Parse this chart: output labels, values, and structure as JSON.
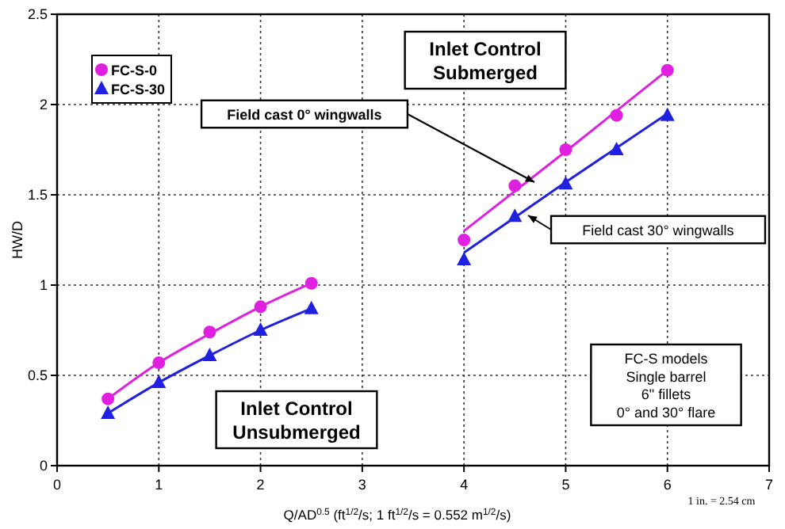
{
  "chart_data": {
    "type": "scatter",
    "xlabel": "Q/AD$^{0.5}$ (ft$^{1/2}$/s; 1 ft$^{1/2}$/s = 0.552 m$^{1/2}$/s)",
    "ylabel": "HW/D",
    "xlim": [
      0,
      7
    ],
    "xticks": [
      0,
      1,
      2,
      3,
      4,
      5,
      6,
      7
    ],
    "ylim": [
      0,
      2.5
    ],
    "yticks": [
      0,
      0.5,
      1,
      1.5,
      2,
      2.5
    ],
    "grid": true,
    "legend": "top left",
    "series": [
      {
        "type": "line",
        "color": "#e020e0",
        "marker": "none",
        "x": [
          0.5,
          1,
          1.5,
          2,
          2.5
        ],
        "values": [
          0.37,
          0.57,
          0.73,
          0.88,
          1.01
        ]
      },
      {
        "type": "line",
        "color": "#2020e0",
        "marker": "none",
        "x": [
          0.5,
          1,
          1.5,
          2,
          2.5
        ],
        "values": [
          0.29,
          0.46,
          0.61,
          0.75,
          0.87
        ]
      },
      {
        "type": "line",
        "color": "#e020e0",
        "marker": "none",
        "x": [
          4,
          5,
          6
        ],
        "values": [
          1.3,
          1.74,
          2.19
        ]
      },
      {
        "type": "line",
        "color": "#2020e0",
        "marker": "none",
        "x": [
          4,
          5,
          6
        ],
        "values": [
          1.18,
          1.57,
          1.95
        ]
      },
      {
        "name": "FC-S-0",
        "color": "#e020e0",
        "marker": "circle",
        "x": [
          0.5,
          1,
          1.5,
          2,
          2.5,
          4,
          4.5,
          5,
          5.5,
          6
        ],
        "values": [
          0.37,
          0.57,
          0.74,
          0.88,
          1.01,
          1.25,
          1.55,
          1.75,
          1.94,
          2.19
        ]
      },
      {
        "name": "FC-S-30",
        "color": "#2020e0",
        "marker": "triangle",
        "x": [
          0.5,
          1,
          1.5,
          2,
          2.5,
          4,
          4.5,
          5,
          5.5,
          6
        ],
        "values": [
          0.29,
          0.46,
          0.61,
          0.75,
          0.87,
          1.14,
          1.38,
          1.56,
          1.75,
          1.94
        ]
      }
    ],
    "annotations": [
      "Inlet Control\nSubmerged",
      "Field cast 0° wingwalls",
      "Field cast 30° wingwalls",
      "Inlet Control\nUnsubmerged",
      "FC-S models\nSingle barrel\n6\" fillets\n0° and 30° flare",
      "1 in. = 2.54 cm"
    ]
  }
}
